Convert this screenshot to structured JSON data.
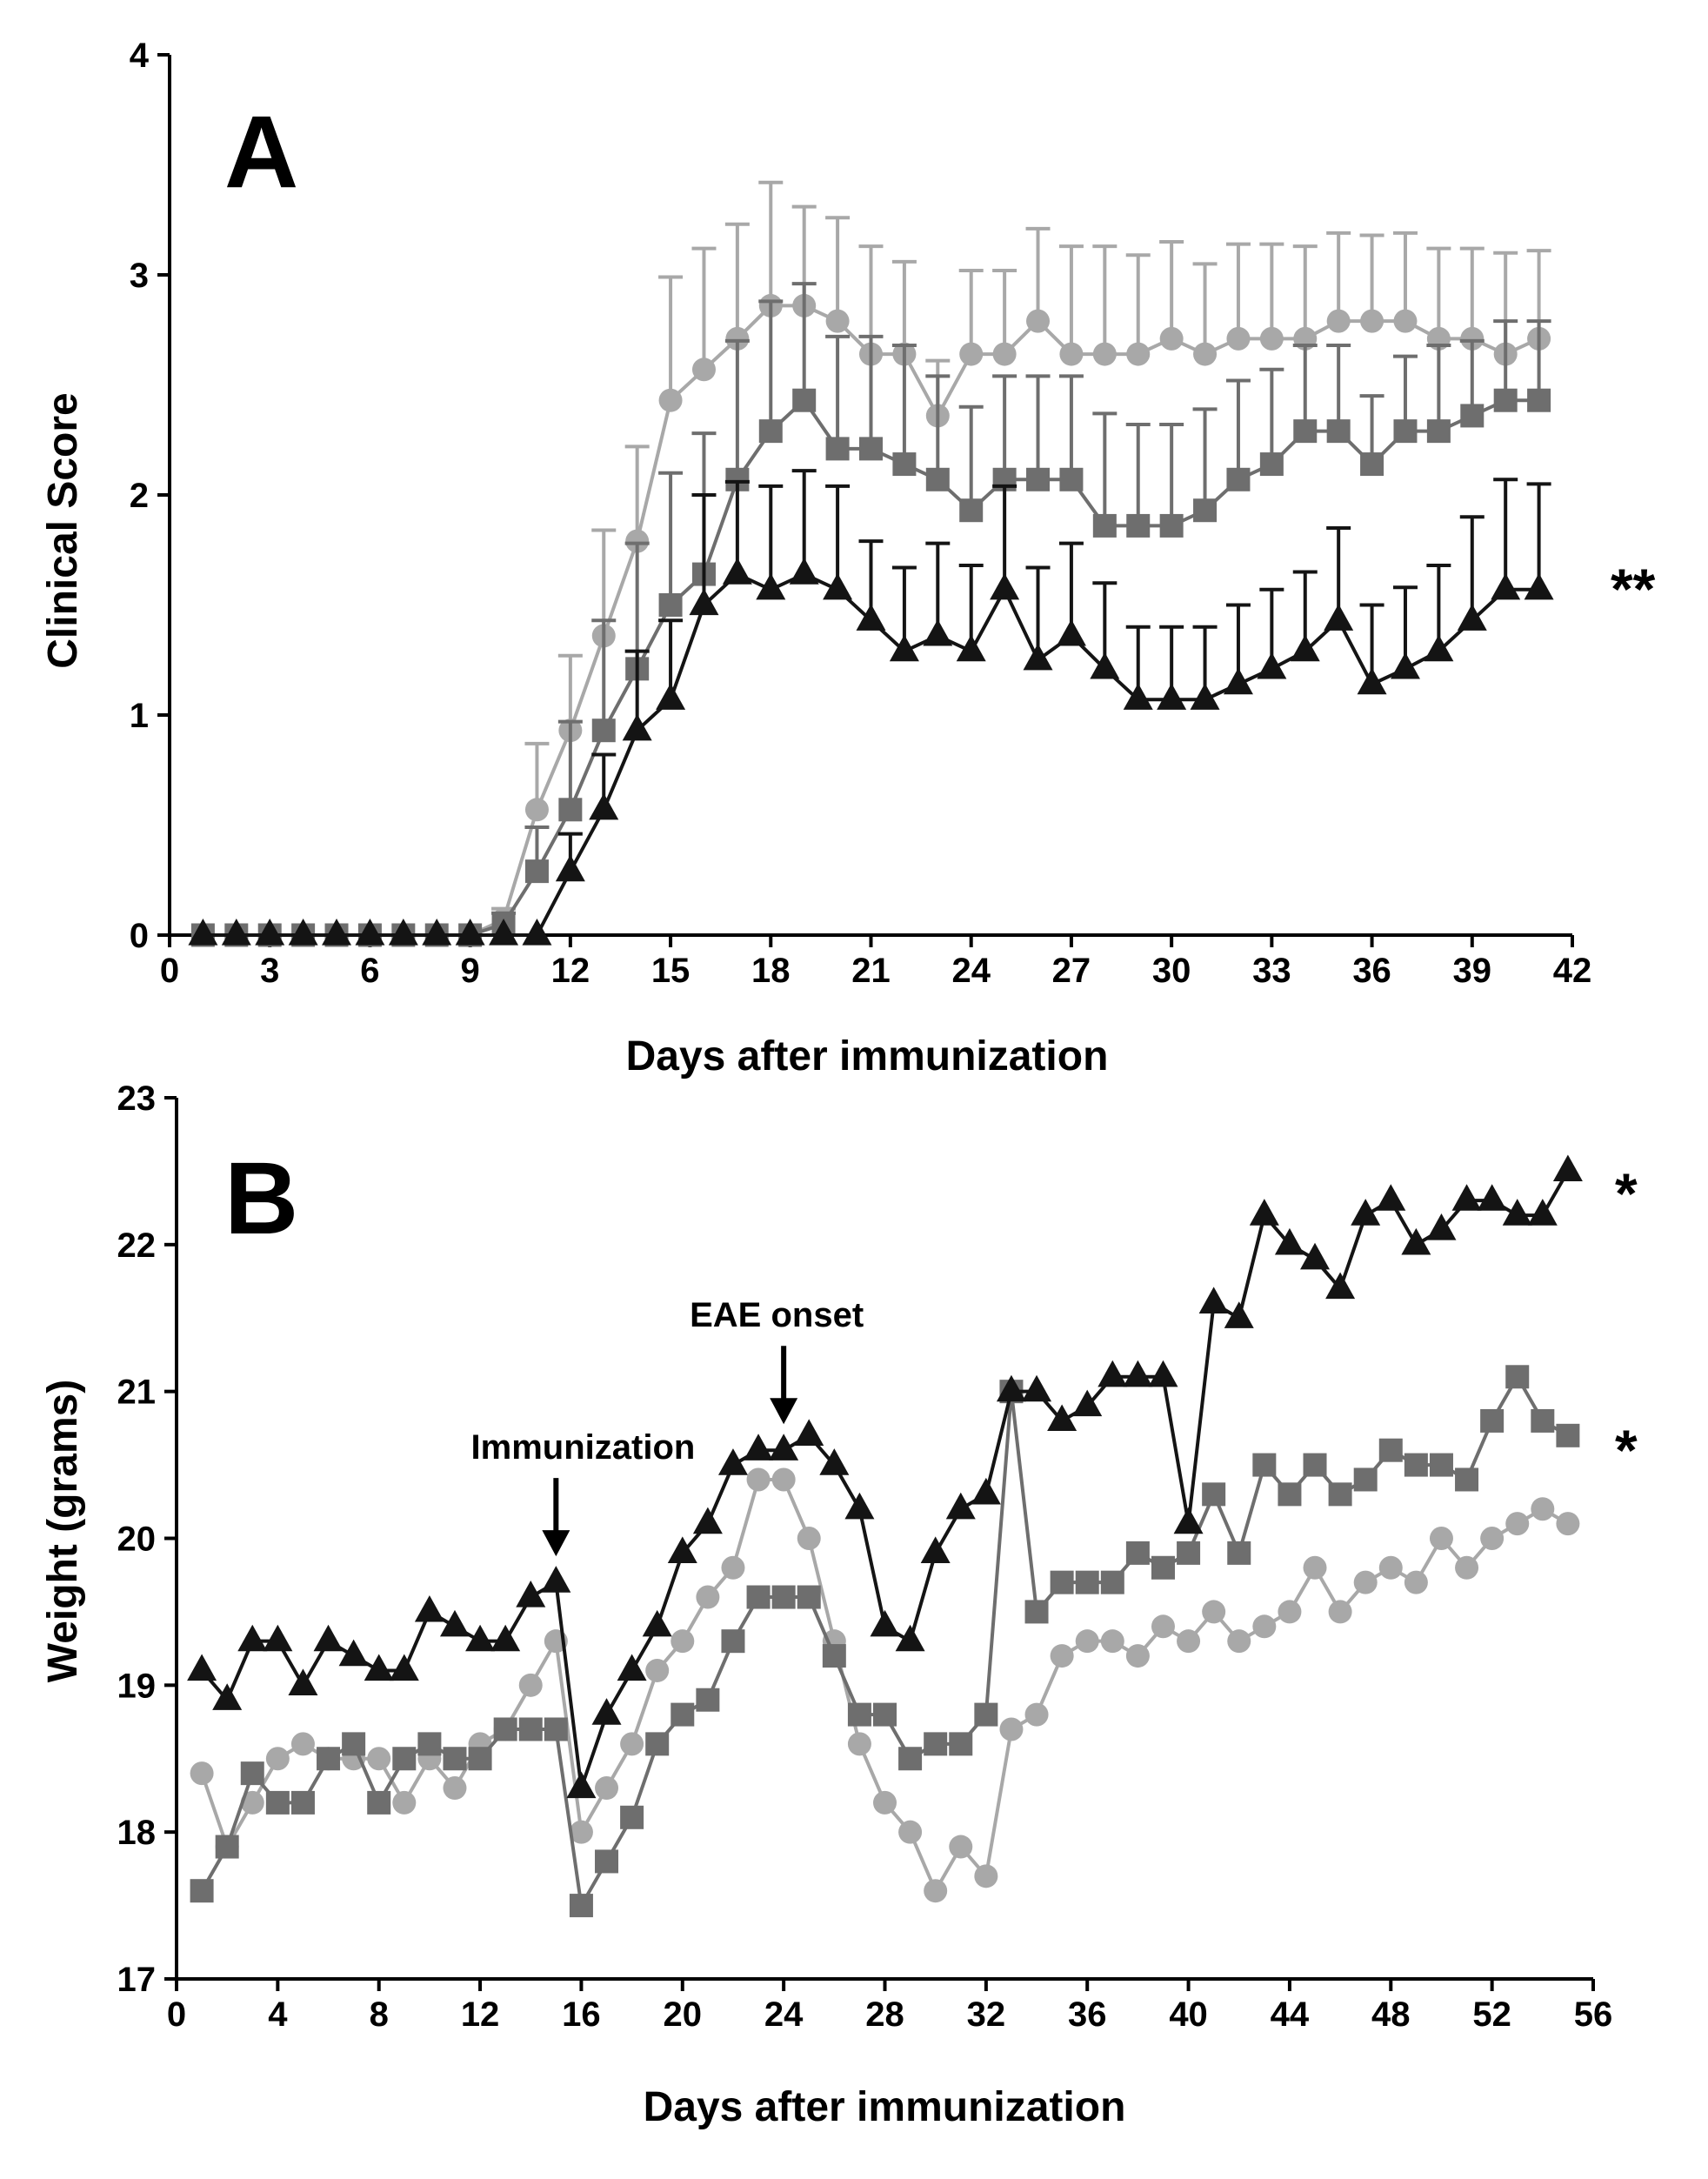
{
  "chart_data": [
    {
      "type": "line",
      "panel": "A",
      "xlabel": "Days after immunization",
      "ylabel": "Clinical Score",
      "xlim": [
        0,
        42
      ],
      "ylim": [
        0,
        4
      ],
      "xticks": [
        0,
        3,
        6,
        9,
        12,
        15,
        18,
        21,
        24,
        27,
        30,
        33,
        36,
        39,
        42
      ],
      "yticks": [
        0,
        1,
        2,
        3,
        4
      ],
      "significance": "**",
      "x": [
        1,
        2,
        3,
        4,
        5,
        6,
        7,
        8,
        9,
        10,
        11,
        12,
        13,
        14,
        15,
        16,
        17,
        18,
        19,
        20,
        21,
        22,
        23,
        24,
        25,
        26,
        27,
        28,
        29,
        30,
        31,
        32,
        33,
        34,
        35,
        36,
        37,
        38,
        39,
        40,
        41
      ],
      "series": [
        {
          "name": "light-grey-circles",
          "color": "#a8a8a8",
          "marker": "circle",
          "values": [
            0,
            0,
            0,
            0,
            0,
            0,
            0,
            0,
            0,
            0.07,
            0.57,
            0.93,
            1.36,
            1.79,
            2.43,
            2.57,
            2.71,
            2.86,
            2.86,
            2.79,
            2.64,
            2.64,
            2.36,
            2.64,
            2.64,
            2.79,
            2.64,
            2.64,
            2.64,
            2.71,
            2.64,
            2.71,
            2.71,
            2.71,
            2.79,
            2.79,
            2.79,
            2.71,
            2.71,
            2.64,
            2.71
          ],
          "errors": [
            0,
            0,
            0,
            0,
            0,
            0,
            0,
            0,
            0,
            0.05,
            0.3,
            0.34,
            0.48,
            0.43,
            0.56,
            0.55,
            0.52,
            0.56,
            0.45,
            0.47,
            0.49,
            0.42,
            0.25,
            0.38,
            0.38,
            0.42,
            0.49,
            0.49,
            0.45,
            0.44,
            0.41,
            0.43,
            0.43,
            0.42,
            0.4,
            0.39,
            0.4,
            0.41,
            0.41,
            0.46,
            0.4
          ]
        },
        {
          "name": "dark-grey-squares",
          "color": "#6e6e6e",
          "marker": "square",
          "values": [
            0,
            0,
            0,
            0,
            0,
            0,
            0,
            0,
            0,
            0.05,
            0.29,
            0.57,
            0.93,
            1.21,
            1.5,
            1.64,
            2.07,
            2.29,
            2.43,
            2.21,
            2.21,
            2.14,
            2.07,
            1.93,
            2.07,
            2.07,
            2.07,
            1.86,
            1.86,
            1.86,
            1.93,
            2.07,
            2.14,
            2.29,
            2.29,
            2.14,
            2.29,
            2.29,
            2.36,
            2.43,
            2.43
          ],
          "errors": [
            0,
            0,
            0,
            0,
            0,
            0,
            0,
            0,
            0,
            0.05,
            0.2,
            0.4,
            0.5,
            0.57,
            0.6,
            0.64,
            0.63,
            0.59,
            0.53,
            0.51,
            0.51,
            0.54,
            0.47,
            0.47,
            0.47,
            0.47,
            0.47,
            0.51,
            0.46,
            0.46,
            0.46,
            0.45,
            0.43,
            0.39,
            0.39,
            0.31,
            0.34,
            0.39,
            0.34,
            0.36,
            0.36
          ]
        },
        {
          "name": "black-triangles",
          "color": "#141414",
          "marker": "triangle",
          "values": [
            0,
            0,
            0,
            0,
            0,
            0,
            0,
            0,
            0,
            0,
            0,
            0.29,
            0.57,
            0.93,
            1.07,
            1.5,
            1.64,
            1.57,
            1.64,
            1.57,
            1.43,
            1.29,
            1.36,
            1.29,
            1.57,
            1.25,
            1.36,
            1.21,
            1.07,
            1.07,
            1.07,
            1.14,
            1.21,
            1.29,
            1.43,
            1.14,
            1.21,
            1.29,
            1.43,
            1.57,
            1.57
          ],
          "errors": [
            0,
            0,
            0,
            0,
            0,
            0,
            0,
            0,
            0,
            0,
            0,
            0.17,
            0.25,
            0.36,
            0.36,
            0.5,
            0.42,
            0.47,
            0.47,
            0.47,
            0.36,
            0.38,
            0.42,
            0.39,
            0.47,
            0.42,
            0.42,
            0.39,
            0.33,
            0.33,
            0.33,
            0.36,
            0.36,
            0.36,
            0.42,
            0.36,
            0.37,
            0.39,
            0.47,
            0.5,
            0.48
          ]
        }
      ]
    },
    {
      "type": "line",
      "panel": "B",
      "xlabel": "Days after immunization",
      "ylabel": "Weight (grams)",
      "xlim": [
        0,
        56
      ],
      "ylim": [
        17,
        23
      ],
      "xticks": [
        0,
        4,
        8,
        12,
        16,
        20,
        24,
        28,
        32,
        36,
        40,
        44,
        48,
        52,
        56
      ],
      "yticks": [
        17,
        18,
        19,
        20,
        21,
        22,
        23
      ],
      "x": [
        1,
        2,
        3,
        4,
        5,
        6,
        7,
        8,
        9,
        10,
        11,
        12,
        13,
        14,
        15,
        16,
        17,
        18,
        19,
        20,
        21,
        22,
        23,
        24,
        25,
        26,
        27,
        28,
        29,
        30,
        31,
        32,
        33,
        34,
        35,
        36,
        37,
        38,
        39,
        40,
        41,
        42,
        43,
        44,
        45,
        46,
        47,
        48,
        49,
        50,
        51,
        52,
        53,
        54,
        55
      ],
      "annotations": [
        {
          "text": "Immunization",
          "x": 15
        },
        {
          "text": "EAE onset",
          "x": 24
        }
      ],
      "series": [
        {
          "name": "black-triangles",
          "color": "#141414",
          "marker": "triangle",
          "significance": "*",
          "values": [
            19.1,
            18.9,
            19.3,
            19.3,
            19.0,
            19.3,
            19.2,
            19.1,
            19.1,
            19.5,
            19.4,
            19.3,
            19.3,
            19.6,
            19.7,
            18.3,
            18.8,
            19.1,
            19.4,
            19.9,
            20.1,
            20.5,
            20.6,
            20.6,
            20.7,
            20.5,
            20.2,
            19.4,
            19.3,
            19.9,
            20.2,
            20.3,
            21.0,
            21.0,
            20.8,
            20.9,
            21.1,
            21.1,
            21.1,
            20.1,
            21.6,
            21.5,
            22.2,
            22.0,
            21.9,
            21.7,
            22.2,
            22.3,
            22.0,
            22.1,
            22.3,
            22.3,
            22.2,
            22.2,
            22.5
          ]
        },
        {
          "name": "dark-grey-squares",
          "color": "#6e6e6e",
          "marker": "square",
          "significance": "*",
          "values": [
            17.6,
            17.9,
            18.4,
            18.2,
            18.2,
            18.5,
            18.6,
            18.2,
            18.5,
            18.6,
            18.5,
            18.5,
            18.7,
            18.7,
            18.7,
            17.5,
            17.8,
            18.1,
            18.6,
            18.8,
            18.9,
            19.3,
            19.6,
            19.6,
            19.6,
            19.2,
            18.8,
            18.8,
            18.5,
            18.6,
            18.6,
            18.8,
            21.0,
            19.5,
            19.7,
            19.7,
            19.7,
            19.9,
            19.8,
            19.9,
            20.3,
            19.9,
            20.5,
            20.3,
            20.5,
            20.3,
            20.4,
            20.6,
            20.5,
            20.5,
            20.4,
            20.8,
            21.1,
            20.8,
            20.7
          ]
        },
        {
          "name": "light-grey-circles",
          "color": "#a8a8a8",
          "marker": "circle",
          "values": [
            18.4,
            17.9,
            18.2,
            18.5,
            18.6,
            18.5,
            18.5,
            18.5,
            18.2,
            18.5,
            18.3,
            18.6,
            18.7,
            19.0,
            19.3,
            18.0,
            18.3,
            18.6,
            19.1,
            19.3,
            19.6,
            19.8,
            20.4,
            20.4,
            20.0,
            19.3,
            18.6,
            18.2,
            18.0,
            17.6,
            17.9,
            17.7,
            18.7,
            18.8,
            19.2,
            19.3,
            19.3,
            19.2,
            19.4,
            19.3,
            19.5,
            19.3,
            19.4,
            19.5,
            19.8,
            19.5,
            19.7,
            19.8,
            19.7,
            20.0,
            19.8,
            20.0,
            20.1,
            20.2,
            20.1
          ]
        }
      ]
    }
  ],
  "panels": {
    "a": {
      "letter": "A",
      "significance_label": "**"
    },
    "b": {
      "letter": "B",
      "significance_label_1": "*",
      "significance_label_2": "*"
    }
  }
}
